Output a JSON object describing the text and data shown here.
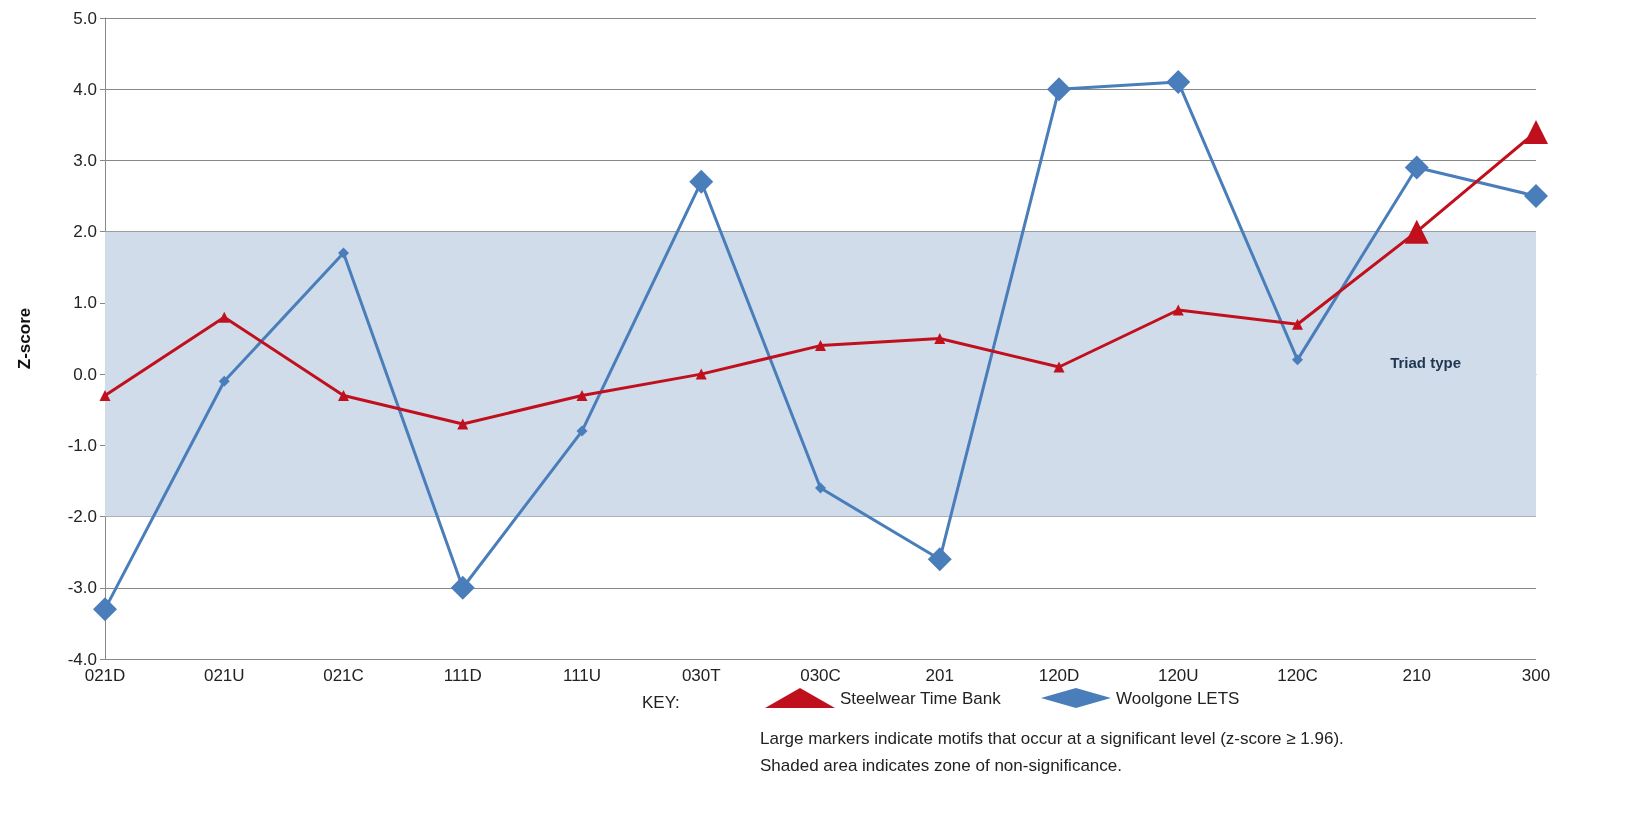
{
  "chart_data": {
    "type": "line",
    "xlabel": "Triad type",
    "ylabel": "Z-score",
    "legend_title": "KEY:",
    "categories": [
      "021D",
      "021U",
      "021C",
      "111D",
      "111U",
      "030T",
      "030C",
      "201",
      "120D",
      "120U",
      "120C",
      "210",
      "300"
    ],
    "series": [
      {
        "name": "Steelwear Time Bank",
        "color": "#c0101e",
        "marker": "triangle",
        "values": [
          -0.3,
          0.8,
          -0.3,
          -0.7,
          -0.3,
          0.0,
          0.4,
          0.5,
          0.1,
          0.9,
          0.7,
          2.0,
          3.4
        ]
      },
      {
        "name": "Woolgone LETS",
        "color": "#4a7ebb",
        "marker": "diamond",
        "values": [
          -3.3,
          -0.1,
          1.7,
          -3.0,
          -0.8,
          2.7,
          -1.6,
          -2.6,
          4.0,
          4.1,
          0.2,
          2.9,
          2.5
        ]
      }
    ],
    "ylim": [
      -4,
      5
    ],
    "yticks": [
      {
        "value": -4,
        "label": "-4.0"
      },
      {
        "value": -3,
        "label": "-3.0"
      },
      {
        "value": -2,
        "label": "-2.0"
      },
      {
        "value": -1,
        "label": "-1.0"
      },
      {
        "value": 0,
        "label": "0.0"
      },
      {
        "value": 1,
        "label": "1.0"
      },
      {
        "value": 2,
        "label": "2.0"
      },
      {
        "value": 3,
        "label": "3.0"
      },
      {
        "value": 4,
        "label": "4.0"
      },
      {
        "value": 5,
        "label": "5.0"
      }
    ],
    "bands": [
      {
        "axis": "y",
        "from": -2,
        "to": 2,
        "color": "#d0dcea"
      }
    ],
    "grid": "y",
    "legend": "bottom",
    "line_style": "solid",
    "annotations": [
      "Large markers indicate motifs that occur at a significant level (z-score ≥ 1.96).",
      "Shaded area indicates zone of non-significance."
    ]
  }
}
